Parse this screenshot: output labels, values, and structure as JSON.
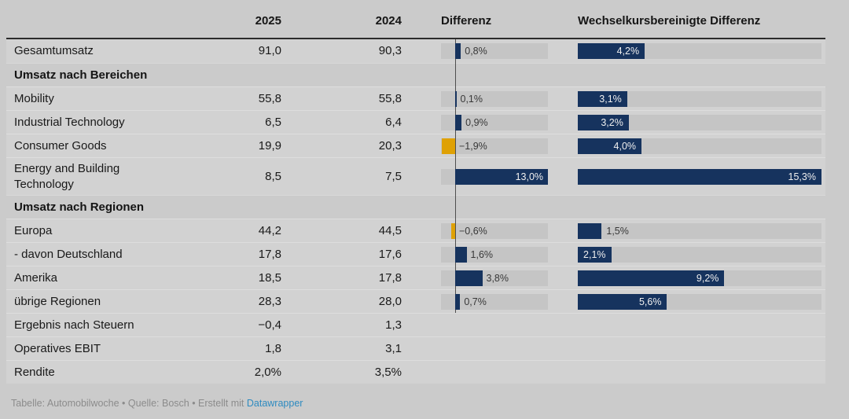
{
  "header": {
    "col_2025": "2025",
    "col_2024": "2024",
    "col_diff": "Differenz",
    "col_fx": "Wechselkursbereinigte Differenz"
  },
  "footer": {
    "credit_prefix": "Tabelle: Automobilwoche • Quelle: Bosch • Erstellt mit ",
    "credit_link": "Datawrapper"
  },
  "colors": {
    "background": "#cbcbcb",
    "row_background": "#d2d2d2",
    "bar_track": "#c5c5c5",
    "bar_positive": "#16335e",
    "bar_negative": "#dfa105",
    "bar_label_inside": "#efefef",
    "link_blue": "#2e8bc0"
  },
  "chart_data": {
    "type": "table",
    "title": "",
    "columns": [
      "",
      "2025",
      "2024",
      "Differenz",
      "Wechselkursbereinigte Differenz"
    ],
    "diff_axis": {
      "min": -2,
      "max": 13
    },
    "fx_axis": {
      "min": 0,
      "max": 15.3
    },
    "rows": [
      {
        "type": "data",
        "label": "Gesamtumsatz",
        "v2025": "91,0",
        "v2024": "90,3",
        "diff": 0.8,
        "diff_label": "0,8%",
        "fx": 4.2,
        "fx_label": "4,2%"
      },
      {
        "type": "section",
        "label": "Umsatz nach Bereichen"
      },
      {
        "type": "data",
        "label": "Mobility",
        "v2025": "55,8",
        "v2024": "55,8",
        "diff": 0.1,
        "diff_label": "0,1%",
        "fx": 3.1,
        "fx_label": "3,1%"
      },
      {
        "type": "data",
        "label": "Industrial Technology",
        "v2025": "6,5",
        "v2024": "6,4",
        "diff": 0.9,
        "diff_label": "0,9%",
        "fx": 3.2,
        "fx_label": "3,2%"
      },
      {
        "type": "data",
        "label": "Consumer Goods",
        "v2025": "19,9",
        "v2024": "20,3",
        "diff": -1.9,
        "diff_label": "−1,9%",
        "fx": 4.0,
        "fx_label": "4,0%"
      },
      {
        "type": "data",
        "label": "Energy and Building Technology",
        "v2025": "8,5",
        "v2024": "7,5",
        "diff": 13.0,
        "diff_label": "13,0%",
        "fx": 15.3,
        "fx_label": "15,3%"
      },
      {
        "type": "section",
        "label": "Umsatz nach Regionen"
      },
      {
        "type": "data",
        "label": "Europa",
        "v2025": "44,2",
        "v2024": "44,5",
        "diff": -0.6,
        "diff_label": "−0,6%",
        "fx": 1.5,
        "fx_label": "1,5%"
      },
      {
        "type": "data",
        "label": "- davon Deutschland",
        "v2025": "17,8",
        "v2024": "17,6",
        "diff": 1.6,
        "diff_label": "1,6%",
        "fx": 2.1,
        "fx_label": "2,1%"
      },
      {
        "type": "data",
        "label": "Amerika",
        "v2025": "18,5",
        "v2024": "17,8",
        "diff": 3.8,
        "diff_label": "3,8%",
        "fx": 9.2,
        "fx_label": "9,2%"
      },
      {
        "type": "data",
        "label": "übrige Regionen",
        "v2025": "28,3",
        "v2024": "28,0",
        "diff": 0.7,
        "diff_label": "0,7%",
        "fx": 5.6,
        "fx_label": "5,6%"
      },
      {
        "type": "data",
        "label": "Ergebnis nach Steuern",
        "v2025": "−0,4",
        "v2024": "1,3",
        "diff": null,
        "diff_label": "",
        "fx": null,
        "fx_label": ""
      },
      {
        "type": "data",
        "label": "Operatives EBIT",
        "v2025": "1,8",
        "v2024": "3,1",
        "diff": null,
        "diff_label": "",
        "fx": null,
        "fx_label": ""
      },
      {
        "type": "data",
        "label": "Rendite",
        "v2025": "2,0%",
        "v2024": "3,5%",
        "diff": null,
        "diff_label": "",
        "fx": null,
        "fx_label": ""
      }
    ]
  }
}
